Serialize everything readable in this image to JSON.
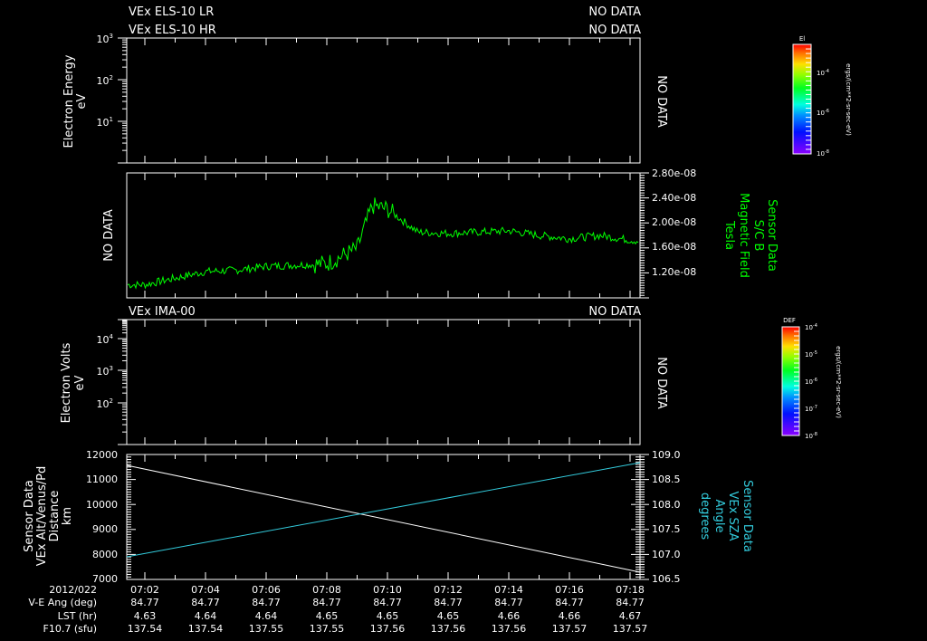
{
  "chart_data": [
    {
      "type": "heatmap",
      "title_lines": [
        "VEx ELS-10 LR",
        "VEx ELS-10 HR"
      ],
      "status_lines": [
        "NO DATA",
        "NO DATA"
      ],
      "ylabel": "Electron Energy",
      "yunit": "eV",
      "yscale": "log",
      "ytick_labels": [
        "10^3",
        "10^2",
        "10^1"
      ],
      "side_text": "NO DATA",
      "colorbar": {
        "label": "El",
        "ticks": [
          "10^-4",
          "10^-6",
          "10^-8"
        ],
        "unit": "ergs/(cm**2-sr-sec-eV)"
      }
    },
    {
      "type": "line",
      "left_text": "NO DATA",
      "ylabel_lines": [
        "Sensor Data",
        "S/C B",
        "Magnetic Field",
        "Tesla"
      ],
      "color": "#00ff00",
      "ylim": [
        9e-09,
        2.8e-08
      ],
      "ytick_labels": [
        "2.80e-08",
        "2.40e-08",
        "2.00e-08",
        "1.60e-08",
        "1.20e-08"
      ],
      "series_description": "Noisy magnetic field ~1.1e-8 rising to ~1.5e-8 by 07:08, jump to ~2.3e-8 near 07:09:30, decays to ~1.9e-8 by 07:11, slight decline to ~1.7e-8 by 07:19",
      "x": [
        "07:02",
        "07:03",
        "07:04",
        "07:05",
        "07:06",
        "07:07",
        "07:08",
        "07:09",
        "07:09:30",
        "07:10",
        "07:11",
        "07:12",
        "07:13",
        "07:14",
        "07:15",
        "07:16",
        "07:17",
        "07:18",
        "07:19"
      ],
      "values": [
        1.1e-08,
        1.2e-08,
        1.3e-08,
        1.32e-08,
        1.38e-08,
        1.4e-08,
        1.42e-08,
        1.65e-08,
        2.3e-08,
        2.25e-08,
        1.9e-08,
        1.88e-08,
        1.9e-08,
        1.92e-08,
        1.85e-08,
        1.8e-08,
        1.85e-08,
        1.78e-08,
        1.72e-08
      ]
    },
    {
      "type": "heatmap",
      "title_lines": [
        "VEx IMA-00"
      ],
      "status_lines": [
        "NO DATA"
      ],
      "ylabel": "Electron Volts",
      "yunit": "eV",
      "yscale": "log",
      "ytick_labels": [
        "10^4",
        "10^3",
        "10^2"
      ],
      "side_text": "NO DATA",
      "colorbar": {
        "label": "DEF",
        "ticks": [
          "10^-4",
          "10^-5",
          "10^-6",
          "10^-7",
          "10^-8"
        ],
        "unit": "ergs/(cm**2-sr-sec-eV)"
      }
    },
    {
      "type": "line",
      "ylabel_left_lines": [
        "Sensor Data",
        "VEx Alt/Venus/Pd",
        "Distance",
        "km"
      ],
      "ylabel_right_lines": [
        "Sensor Data",
        "VEx SZA",
        "Angle",
        "degrees"
      ],
      "ylim_left": [
        7000,
        12000
      ],
      "ylim_right": [
        106.5,
        109.0
      ],
      "ytick_labels_left": [
        "12000",
        "11000",
        "10000",
        "9000",
        "8000",
        "7000"
      ],
      "ytick_labels_right": [
        "109.0",
        "108.5",
        "108.0",
        "107.5",
        "107.0",
        "106.5"
      ],
      "series": [
        {
          "name": "VEx Alt/Venus/Pd Distance (km)",
          "color": "#ffffff",
          "x": [
            "07:02",
            "07:19:30"
          ],
          "values": [
            11550,
            7250
          ]
        },
        {
          "name": "VEx SZA Angle (degrees)",
          "color": "#33ccdd",
          "x": [
            "07:02",
            "07:19:30"
          ],
          "values": [
            107.2,
            108.85
          ]
        }
      ]
    }
  ],
  "header": {
    "line1": "VEx ELS-10 LR",
    "line2": "VEx ELS-10 HR",
    "status1": "NO DATA",
    "status2": "NO DATA"
  },
  "panel1": {
    "ylabel": "Electron Energy",
    "yunit": "eV",
    "ticks": [
      {
        "base": "10",
        "exp": "3"
      },
      {
        "base": "10",
        "exp": "2"
      },
      {
        "base": "10",
        "exp": "1"
      }
    ],
    "side_text": "NO DATA",
    "colorbar_label": "El",
    "colorbar_ticks": [
      {
        "base": "10",
        "exp": "-4"
      },
      {
        "base": "10",
        "exp": "-6"
      },
      {
        "base": "10",
        "exp": "-8"
      }
    ],
    "colorbar_unit": "ergs/(cm**2-sr-sec-eV)"
  },
  "panel2": {
    "left_text": "NO DATA",
    "ticks": [
      "2.80e-08",
      "2.40e-08",
      "2.00e-08",
      "1.60e-08",
      "1.20e-08"
    ],
    "label1": "Sensor Data",
    "label2": "S/C B",
    "label3": "Magnetic Field",
    "label4": "Tesla",
    "color": "#00ff00"
  },
  "panel3": {
    "title": "VEx IMA-00",
    "status": "NO DATA",
    "ylabel": "Electron Volts",
    "yunit": "eV",
    "ticks": [
      {
        "base": "10",
        "exp": "4"
      },
      {
        "base": "10",
        "exp": "3"
      },
      {
        "base": "10",
        "exp": "2"
      }
    ],
    "side_text": "NO DATA",
    "colorbar_label": "DEF",
    "colorbar_ticks": [
      {
        "base": "10",
        "exp": "-4"
      },
      {
        "base": "10",
        "exp": "-5"
      },
      {
        "base": "10",
        "exp": "-6"
      },
      {
        "base": "10",
        "exp": "-7"
      },
      {
        "base": "10",
        "exp": "-8"
      }
    ],
    "colorbar_unit": "ergs/(cm**2-sr-sec-eV)"
  },
  "panel4": {
    "left_ticks": [
      "12000",
      "11000",
      "10000",
      "9000",
      "8000",
      "7000"
    ],
    "right_ticks": [
      "109.0",
      "108.5",
      "108.0",
      "107.5",
      "107.0",
      "106.5"
    ],
    "left_label1": "Sensor Data",
    "left_label2": "VEx Alt/Venus/Pd",
    "left_label3": "Distance",
    "left_label4": "km",
    "right_label1": "Sensor Data",
    "right_label2": "VEx SZA",
    "right_label3": "Angle",
    "right_label4": "degrees",
    "alt_color": "#ffffff",
    "sza_color": "#33ccdd"
  },
  "footer": {
    "row_labels": [
      "2012/022",
      "V-E Ang (deg)",
      "LST (hr)",
      "F10.7 (sfu)"
    ],
    "times": [
      "07:02",
      "07:04",
      "07:06",
      "07:08",
      "07:10",
      "07:12",
      "07:14",
      "07:16",
      "07:18"
    ],
    "ve_ang": [
      "84.77",
      "84.77",
      "84.77",
      "84.77",
      "84.77",
      "84.77",
      "84.77",
      "84.77",
      "84.77"
    ],
    "lst": [
      "4.63",
      "4.64",
      "4.64",
      "4.65",
      "4.65",
      "4.65",
      "4.66",
      "4.66",
      "4.67"
    ],
    "f107": [
      "137.54",
      "137.54",
      "137.55",
      "137.55",
      "137.56",
      "137.56",
      "137.56",
      "137.57",
      "137.57"
    ]
  }
}
